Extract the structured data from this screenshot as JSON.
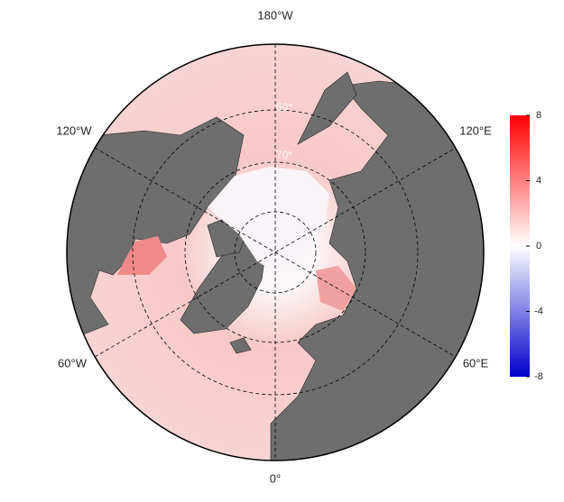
{
  "map": {
    "longitude_labels": {
      "top": "180°W",
      "upper_left": "120°W",
      "upper_right": "120°E",
      "lower_left": "60°W",
      "lower_right": "60°E",
      "bottom": "0°"
    },
    "latitude_labels": [
      "70°",
      "60°"
    ]
  },
  "colorbar": {
    "lim": [
      -8,
      8
    ],
    "ticks": [
      8,
      4,
      0,
      -4,
      -8
    ],
    "colors": [
      "#0000cc",
      "#ffffff",
      "#ff0000"
    ]
  }
}
